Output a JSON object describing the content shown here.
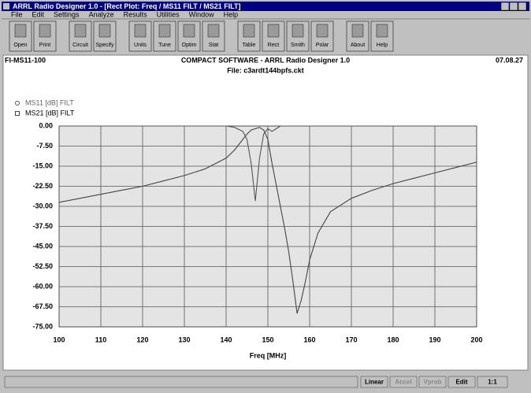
{
  "window": {
    "title": "ARRL Radio Designer 1.0 - [Rect Plot: Freq / MS11 FILT / MS21 FILT]",
    "menu": [
      "File",
      "Edit",
      "Settings",
      "Analyze",
      "Results",
      "Utilities",
      "Window",
      "Help"
    ],
    "toolbar": [
      "Open",
      "Print",
      "Circuit",
      "Specify",
      "Units",
      "Tune",
      "Optim",
      "Stat",
      "Table",
      "Rect",
      "Smith",
      "Polar",
      "About",
      "Help"
    ],
    "status": [
      "Linear",
      "Accel",
      "Vprob",
      "Edit",
      "1:1"
    ]
  },
  "header": {
    "left": "FI-MS11-100",
    "center": "COMPACT SOFTWARE - ARRL Radio Designer 1.0",
    "file": "File: c3ardt144bpfs.ckt",
    "right": "07.08.27"
  },
  "chart_data": {
    "type": "line",
    "x": [
      100,
      105,
      110,
      115,
      120,
      125,
      130,
      135,
      140,
      142,
      144,
      145,
      146,
      147,
      148,
      149,
      150,
      151,
      152,
      153,
      154,
      155,
      156,
      157,
      158,
      159,
      160,
      162,
      165,
      170,
      175,
      180,
      185,
      190,
      195,
      200
    ],
    "series": [
      {
        "name": "MS11 [dB] FILT",
        "marker": "circle",
        "color": "#555555",
        "values": [
          0,
          0,
          0,
          0,
          0,
          0,
          0,
          0,
          0,
          -0.5,
          -2,
          -5,
          -14,
          -28,
          -12,
          -3,
          -1,
          -2,
          -1,
          0,
          0,
          0,
          0,
          0,
          0,
          0,
          0,
          0,
          0,
          0,
          0,
          0,
          0,
          0,
          0,
          0
        ]
      },
      {
        "name": "MS21 [dB] FILT",
        "marker": "square",
        "color": "#444444",
        "values": [
          -28.5,
          -27,
          -25.5,
          -24,
          -22.5,
          -20.5,
          -18.5,
          -16,
          -12,
          -9,
          -5,
          -3,
          -1.5,
          -1,
          -0.5,
          -1.5,
          -5,
          -14,
          -22,
          -30,
          -38,
          -47,
          -58,
          -70,
          -65,
          -58,
          -50,
          -40,
          -32,
          -27,
          -24,
          -21.5,
          -19.5,
          -17.5,
          -15.5,
          -13.5
        ]
      }
    ],
    "xlim": [
      100,
      200
    ],
    "ylim": [
      -75,
      0
    ],
    "xticks": [
      100,
      110,
      120,
      130,
      140,
      150,
      160,
      170,
      180,
      190,
      200
    ],
    "yticks": [
      {
        "value": 0,
        "label": "0.00"
      },
      {
        "value": -7.5,
        "label": "-7.50"
      },
      {
        "value": -15,
        "label": "-15.00"
      },
      {
        "value": -22.5,
        "label": "-22.50"
      },
      {
        "value": -30,
        "label": "-30.00"
      },
      {
        "value": -37.5,
        "label": "-37.50"
      },
      {
        "value": -45,
        "label": "-45.00"
      },
      {
        "value": -52.5,
        "label": "-52.50"
      },
      {
        "value": -60,
        "label": "-60.00"
      },
      {
        "value": -67.5,
        "label": "-67.50"
      },
      {
        "value": -75,
        "label": "-75.00"
      }
    ],
    "xlabel": "Freq [MHz]",
    "grid": true
  }
}
